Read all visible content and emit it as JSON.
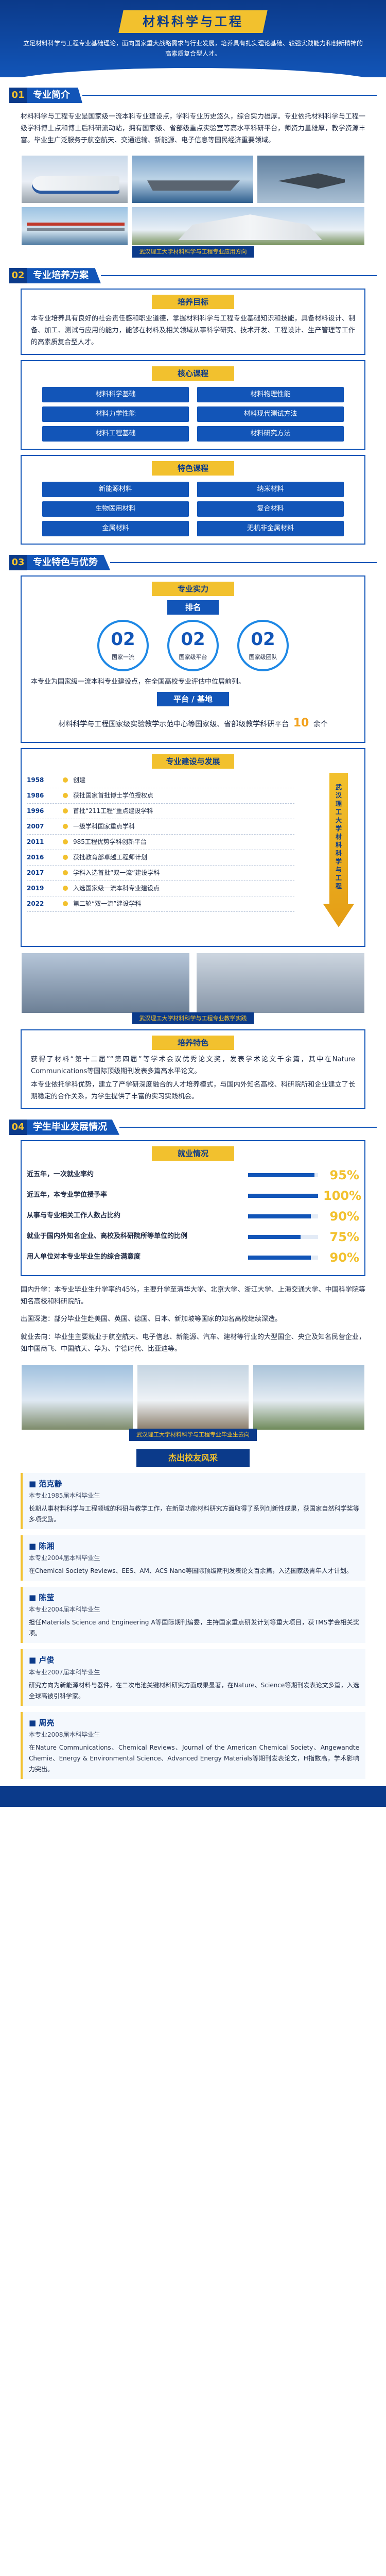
{
  "header": {
    "title": "材料科学与工程",
    "intro": "立足材料科学与工程专业基础理论，面向国家重大战略需求与行业发展，培养具有扎实理论基础、较强实践能力和创新精神的高素质复合型人才。"
  },
  "sections": {
    "s1": {
      "num": "01",
      "title": "专业简介"
    },
    "s2": {
      "num": "02",
      "title": "专业培养方案"
    },
    "s3": {
      "num": "03",
      "title": "专业特色与优势"
    },
    "s4": {
      "num": "04",
      "title": "学生毕业发展情况"
    }
  },
  "intro_text": "材料科学与工程专业是国家级一流本科专业建设点，学科专业历史悠久，综合实力雄厚。专业依托材料科学与工程一级学科博士点和博士后科研流动站，拥有国家级、省部级重点实验室等高水平科研平台，师资力量雄厚，教学资源丰富。毕业生广泛服务于航空航天、交通运输、新能源、电子信息等国民经济重要领域。",
  "collage_caption": "武汉理工大学材料科学与工程专业应用方向",
  "training": {
    "goal_title": "培养目标",
    "goal_text": "本专业培养具有良好的社会责任感和职业道德，掌握材料科学与工程专业基础知识和技能，具备材料设计、制备、加工、测试与应用的能力，能够在材料及相关领域从事科学研究、技术开发、工程设计、生产管理等工作的高素质复合型人才。",
    "core_title": "核心课程",
    "core_courses": [
      "材料科学基础",
      "材料物理性能",
      "材料力学性能",
      "材料现代测试方法",
      "材料工程基础",
      "材料研究方法"
    ],
    "special_title": "特色课程",
    "special_courses": [
      "新能源材料",
      "纳米材料",
      "生物医用材料",
      "复合材料",
      "金属材料",
      "无机非金属材料"
    ]
  },
  "features": {
    "strength_title": "专业实力",
    "rank_title": "排名",
    "stats": [
      {
        "num": "02",
        "label": "国家一流"
      },
      {
        "num": "02",
        "label": "国家级平台"
      },
      {
        "num": "02",
        "label": "国家级团队"
      }
    ],
    "rank_text": "本专业为国家级一流本科专业建设点，在全国高校专业评估中位居前列。",
    "platform_title": "平台 / 基地",
    "platform_text": "材料科学与工程国家级实验教学示范中心等国家级、省部级教学科研平台",
    "platform_num": "10",
    "platform_suffix": "余个",
    "history_title": "专业建设与发展",
    "timeline": [
      {
        "year": "1958",
        "text": "创建"
      },
      {
        "year": "1986",
        "text": "获批国家首批博士学位授权点"
      },
      {
        "year": "1996",
        "text": "首批“211工程”重点建设学科"
      },
      {
        "year": "2007",
        "text": "一级学科国家重点学科"
      },
      {
        "year": "2011",
        "text": "985工程优势学科创新平台"
      },
      {
        "year": "2016",
        "text": "获批教育部卓越工程师计划"
      },
      {
        "year": "2017",
        "text": "学科入选首批“双一流”建设学科"
      },
      {
        "year": "2019",
        "text": "入选国家级一流本科专业建设点"
      },
      {
        "year": "2022",
        "text": "第二轮“双一流”建设学科"
      }
    ],
    "arrow_label": "武汉理工大学材料科学与工程",
    "photos_caption": "武汉理工大学材料科学与工程专业教学实践",
    "feature_title": "培养特色",
    "feature_text": "获得了材料“第十二届”“第四届”等学术会议优秀论文奖，发表学术论文千余篇，其中在Nature Communications等国际顶级期刊发表多篇高水平论文。",
    "feature_text2": "本专业依托学科优势，建立了产学研深度融合的人才培养模式，与国内外知名高校、科研院所和企业建立了长期稳定的合作关系，为学生提供了丰富的实习实践机会。"
  },
  "employment": {
    "title": "就业情况",
    "rows": [
      {
        "label": "近五年，一次就业率约",
        "value": "95%",
        "pct": 95
      },
      {
        "label": "近五年，本专业学位授予率",
        "value": "100%",
        "pct": 100
      },
      {
        "label": "从事与专业相关工作人数占比约",
        "value": "90%",
        "pct": 90
      },
      {
        "label": "就业于国内外知名企业、高校及科研院所等单位的比例",
        "value": "75%",
        "pct": 75
      },
      {
        "label": "用人单位对本专业毕业生的综合满意度",
        "value": "90%",
        "pct": 90
      }
    ],
    "text1": "国内升学：本专业毕业生升学率约45%，主要升学至清华大学、北京大学、浙江大学、上海交通大学、中国科学院等知名高校和科研院所。",
    "text2": "出国深造：部分毕业生赴美国、英国、德国、日本、新加坡等国家的知名高校继续深造。",
    "text3": "就业去向：毕业生主要就业于航空航天、电子信息、新能源、汽车、建材等行业的大型国企、央企及知名民营企业，如中国商飞、中国航天、华为、宁德时代、比亚迪等。",
    "photos_caption": "武汉理工大学材料科学与工程专业毕业生去向"
  },
  "alumni": {
    "title": "杰出校友风采",
    "items": [
      {
        "name": "■ 范克静",
        "info": "本专业1985届本科毕业生",
        "desc": "长期从事材料科学与工程领域的科研与教学工作，在新型功能材料研究方面取得了系列创新性成果，获国家自然科学奖等多项奖励。"
      },
      {
        "name": "■ 陈湘",
        "info": "本专业2004届本科毕业生",
        "desc": "在Chemical Society Reviews、EES、AM、ACS Nano等国际顶级期刊发表论文百余篇，入选国家级青年人才计划。"
      },
      {
        "name": "■ 陈莹",
        "info": "本专业2004届本科毕业生",
        "desc": "担任Materials Science and Engineering A等国际期刊编委，主持国家重点研发计划等重大项目，获TMS学会相关奖项。"
      },
      {
        "name": "■ 卢俊",
        "info": "本专业2007届本科毕业生",
        "desc": "研究方向为新能源材料与器件，在二次电池关键材料研究方面成果显著，在Nature、Science等期刊发表论文多篇，入选全球高被引科学家。"
      },
      {
        "name": "■ 周亮",
        "info": "本专业2008届本科毕业生",
        "desc": "在Nature Communications、Chemical Reviews、Journal of the American Chemical Society、Angewandte Chemie、Energy & Environmental Science、Advanced Energy Materials等期刊发表论文，H指数高，学术影响力突出。"
      }
    ]
  }
}
